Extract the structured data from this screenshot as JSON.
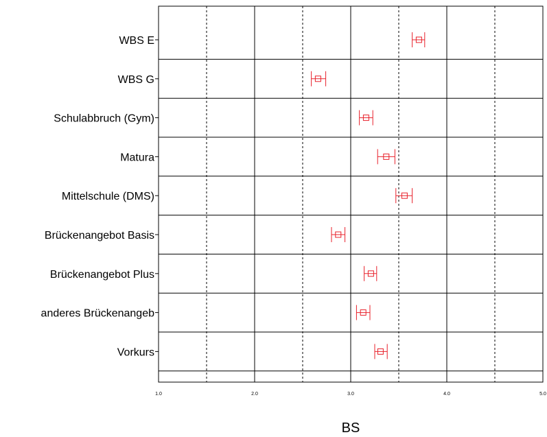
{
  "chart_data": {
    "type": "scatter",
    "xlabel": "BS",
    "xlim": [
      1.0,
      5.0
    ],
    "xticks": [
      "1.0",
      "2.0",
      "3.0",
      "4.0",
      "5.0"
    ],
    "grid": {
      "solid_x": [
        1.0,
        2.0,
        3.0,
        4.0,
        5.0
      ],
      "dashed_x": [
        1.5,
        2.5,
        3.5,
        4.5
      ]
    },
    "categories": [
      "WBS E",
      "WBS G",
      "Schulabbruch (Gym)",
      "Matura",
      "Mittelschule (DMS)",
      "Brückenangebot Basis",
      "Brückenangebot Plus",
      "anderes Brückenangeb",
      "Vorkurs"
    ],
    "series": [
      {
        "marker": "square",
        "color": "#e8202a",
        "values": [
          3.71,
          2.66,
          3.16,
          3.37,
          3.56,
          2.87,
          3.21,
          3.13,
          3.31
        ],
        "ci_low": [
          3.64,
          2.59,
          3.09,
          3.28,
          3.47,
          2.8,
          3.14,
          3.06,
          3.25
        ],
        "ci_high": [
          3.77,
          2.74,
          3.23,
          3.46,
          3.64,
          2.94,
          3.27,
          3.2,
          3.38
        ]
      }
    ]
  }
}
